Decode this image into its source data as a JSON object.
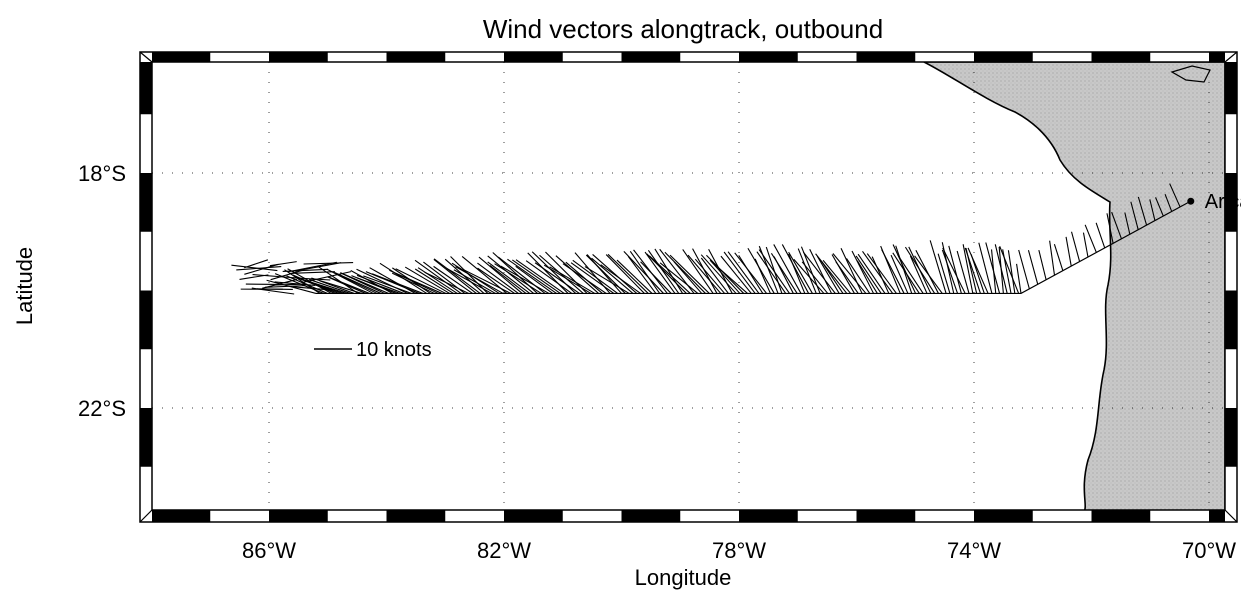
{
  "figure": {
    "title": "Wind vectors alongtrack, outbound",
    "xlabel": "Longitude",
    "ylabel": "Latitude"
  },
  "map": {
    "lon_range": [
      -88.5,
      -68.0
    ],
    "lat_range": [
      -25.5,
      -15.4
    ],
    "lon_ticks": [
      {
        "value": -86,
        "label": "86°W"
      },
      {
        "value": -82,
        "label": "82°W"
      },
      {
        "value": -78,
        "label": "78°W"
      },
      {
        "value": -74,
        "label": "74°W"
      },
      {
        "value": -70,
        "label": "70°W"
      }
    ],
    "lat_ticks": [
      {
        "value": -18,
        "label": "18°S"
      },
      {
        "value": -22,
        "label": "22°S"
      }
    ],
    "grid": "dotted",
    "frame": "alternating black/white border",
    "land_color": "#c8c8c8",
    "ocean_color": "#ffffff",
    "city": {
      "name": "Arica",
      "lon": -70.31,
      "lat": -18.48
    },
    "legend": {
      "label": "10 knots",
      "speed_knots": 10
    }
  },
  "chart_data": {
    "type": "vector field",
    "description_units": "lon/lat start positions with wind components in knots (u east, v north)",
    "track": [
      {
        "lon": -70.35,
        "lat": -18.5
      },
      {
        "lon": -73.2,
        "lat": -20.05
      },
      {
        "lon": -85.2,
        "lat": -20.05
      }
    ],
    "vectors": [
      {
        "lon": -73.5,
        "lat": -20.05,
        "u": -3,
        "v": 12
      },
      {
        "lon": -74.0,
        "lat": -20.05,
        "u": -4,
        "v": 12
      },
      {
        "lon": -75.0,
        "lat": -20.05,
        "u": -6,
        "v": 11
      },
      {
        "lon": -76.0,
        "lat": -20.05,
        "u": -7,
        "v": 10
      },
      {
        "lon": -77.0,
        "lat": -20.05,
        "u": -6,
        "v": 11
      },
      {
        "lon": -78.0,
        "lat": -20.05,
        "u": -8,
        "v": 10
      },
      {
        "lon": -79.0,
        "lat": -20.05,
        "u": -9,
        "v": 10
      },
      {
        "lon": -80.0,
        "lat": -20.05,
        "u": -10,
        "v": 9
      },
      {
        "lon": -81.0,
        "lat": -20.05,
        "u": -11,
        "v": 9
      },
      {
        "lon": -82.0,
        "lat": -20.05,
        "u": -11,
        "v": 8
      },
      {
        "lon": -83.0,
        "lat": -20.05,
        "u": -12,
        "v": 7
      },
      {
        "lon": -84.0,
        "lat": -20.05,
        "u": -12,
        "v": 6
      },
      {
        "lon": -85.0,
        "lat": -20.05,
        "u": -11,
        "v": 5
      }
    ]
  }
}
